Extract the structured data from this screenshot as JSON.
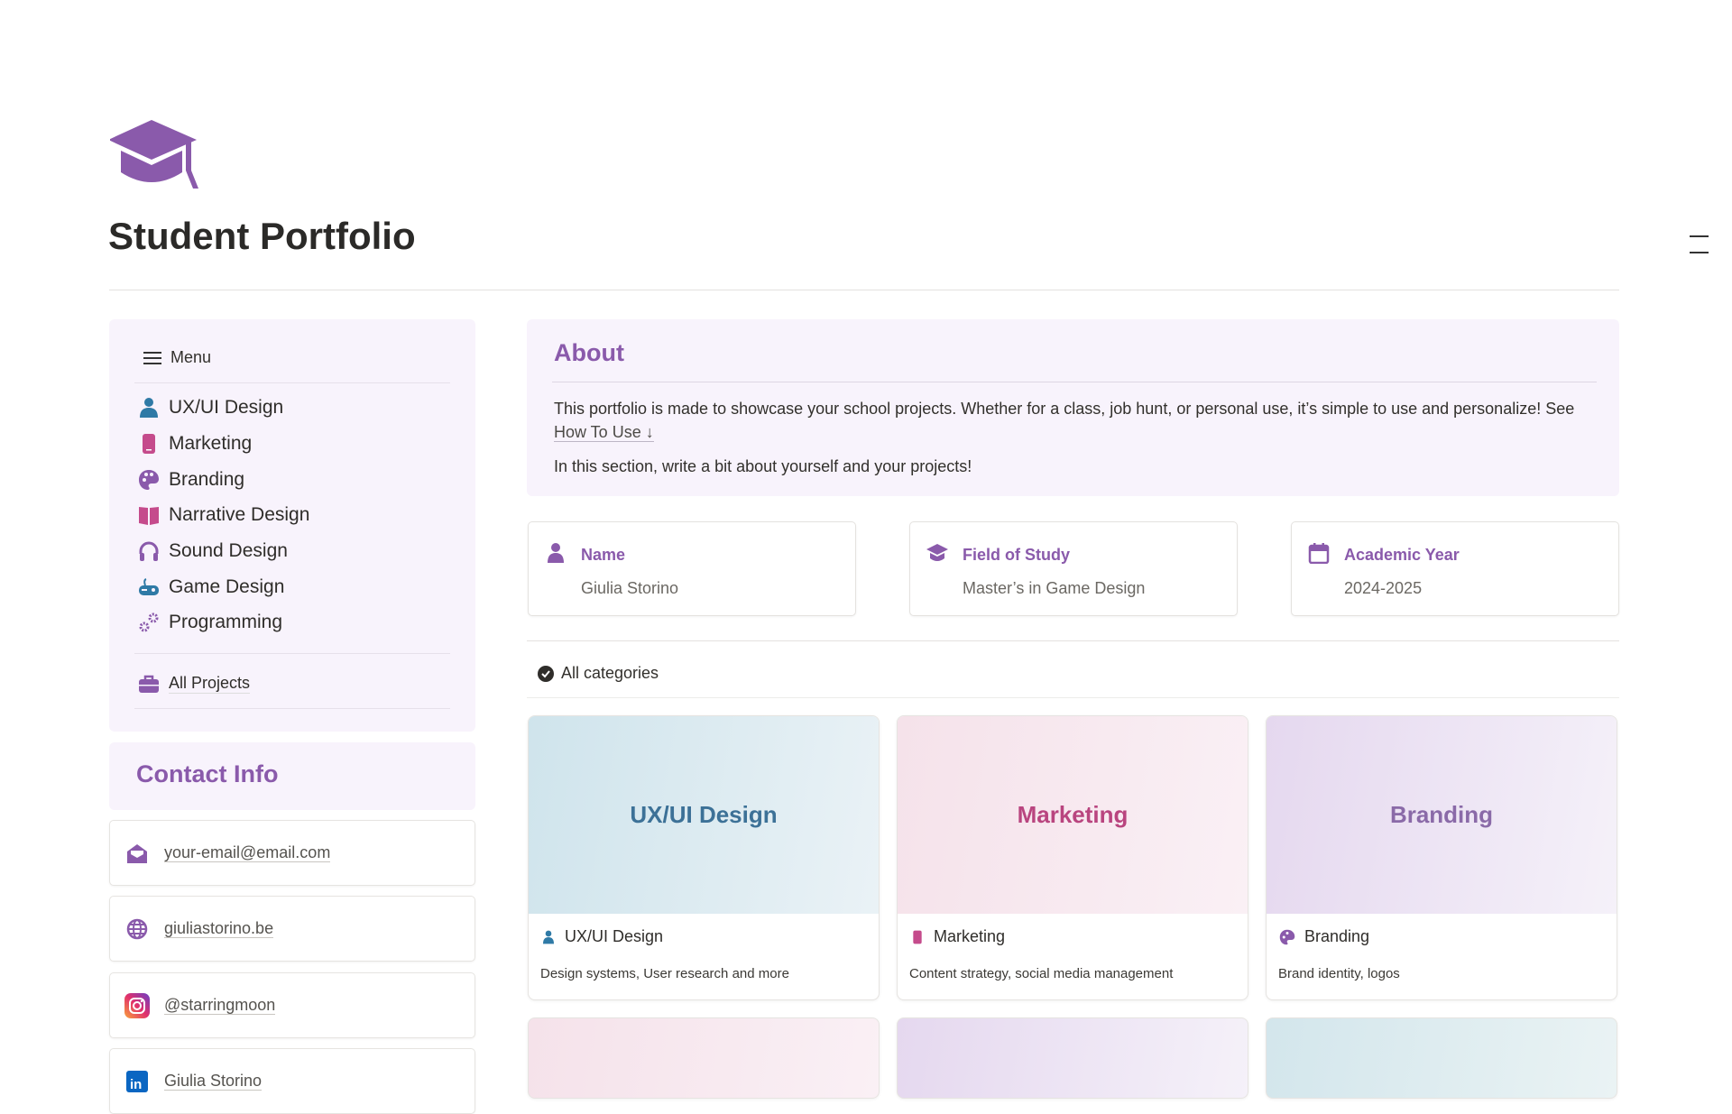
{
  "page": {
    "title": "Student Portfolio",
    "icon": "graduation-cap-icon"
  },
  "colors": {
    "accent": "#8a5aab",
    "panel_bg": "#f8f3fc",
    "ux_blue": "#3c7197",
    "marketing_pink": "#b9457f",
    "branding_purple": "#8a6aa8"
  },
  "menu": {
    "header": "Menu",
    "items": [
      {
        "label": "UX/UI Design",
        "icon": "person-icon",
        "color": "#2f7aa6"
      },
      {
        "label": "Marketing",
        "icon": "phone-icon",
        "color": "#c54b8c"
      },
      {
        "label": "Branding",
        "icon": "palette-icon",
        "color": "#8a5aab"
      },
      {
        "label": "Narrative Design",
        "icon": "book-icon",
        "color": "#c54b8c"
      },
      {
        "label": "Sound Design",
        "icon": "headphones-icon",
        "color": "#8a5aab"
      },
      {
        "label": "Game Design",
        "icon": "gamepad-icon",
        "color": "#2f7aa6"
      },
      {
        "label": "Programming",
        "icon": "gears-icon",
        "color": "#8a5aab"
      }
    ],
    "all_projects": "All Projects"
  },
  "contact": {
    "title": "Contact Info",
    "items": [
      {
        "label": "your-email@email.com",
        "icon": "envelope-open-icon"
      },
      {
        "label": "giuliastorino.be",
        "icon": "globe-icon"
      },
      {
        "label": "@starringmoon",
        "icon": "instagram-icon"
      },
      {
        "label": "Giulia Storino",
        "icon": "linkedin-icon"
      }
    ]
  },
  "about": {
    "title": "About",
    "p1": "This portfolio is made to showcase your school projects. Whether for a class, job hunt, or personal use, it’s simple to use and personalize! See ",
    "link": "How To Use ↓",
    "p2": "In this section, write a bit about yourself and your projects!"
  },
  "info": [
    {
      "label": "Name",
      "value": "Giulia Storino",
      "icon": "person-icon"
    },
    {
      "label": "Field of Study",
      "value": "Master’s in Game Design",
      "icon": "graduation-cap-icon"
    },
    {
      "label": "Academic Year",
      "value": "2024-2025",
      "icon": "calendar-icon"
    }
  ],
  "gallery": {
    "filter": "All categories",
    "cards": [
      {
        "cover": "UX/UI Design",
        "name": "UX/UI Design",
        "desc": "Design systems, User research and more"
      },
      {
        "cover": "Marketing",
        "name": "Marketing",
        "desc": "Content strategy, social media management"
      },
      {
        "cover": "Branding",
        "name": "Branding",
        "desc": "Brand identity, logos"
      }
    ]
  }
}
